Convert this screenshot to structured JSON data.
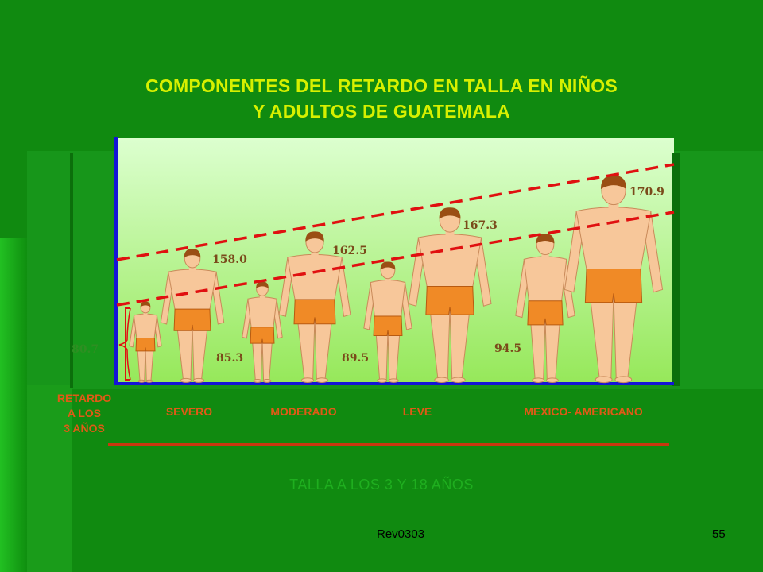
{
  "chart_data": {
    "type": "bar",
    "title": "COMPONENTES DEL RETARDO EN TALLA EN NIÑOS Y ADULTOS DE GUATEMALA",
    "title_lines": [
      "COMPONENTES DEL RETARDO EN TALLA EN NIÑOS",
      "Y ADULTOS DE GUATEMALA"
    ],
    "xlabel": "TALLA A LOS 3 Y 18 AÑOS",
    "ylabel": "",
    "categories": [
      "SEVERO",
      "MODERADO",
      "LEVE",
      "MEXICO- AMERICANO"
    ],
    "series": [
      {
        "values": [
          80.7,
          85.3,
          89.5,
          94.5
        ]
      },
      {
        "values": [
          158.0,
          162.5,
          167.3,
          170.9
        ]
      }
    ],
    "value_labels_age3": [
      "80.7",
      "85.3",
      "89.5",
      "94.5"
    ],
    "value_labels_age18": [
      "158.0",
      "162.5",
      "167.3",
      "170.9"
    ],
    "ylim": [
      0,
      180
    ],
    "grid": false,
    "legend": "none",
    "annotation": {
      "lines": [
        "RETARDO",
        "A LOS",
        "3 AÑOS"
      ]
    }
  },
  "footer": {
    "left": "Rev0303",
    "right": "55"
  },
  "colors": {
    "title": "#d7f000",
    "labels": "#e05a16",
    "axis": "#1414d8",
    "trend": "#e01010",
    "skin": "#f7c79a",
    "shorts": "#f08a26",
    "hair": "#9a4e14",
    "plot_bg_top": "#dcffcf",
    "plot_bg_bottom": "#96e85a"
  }
}
